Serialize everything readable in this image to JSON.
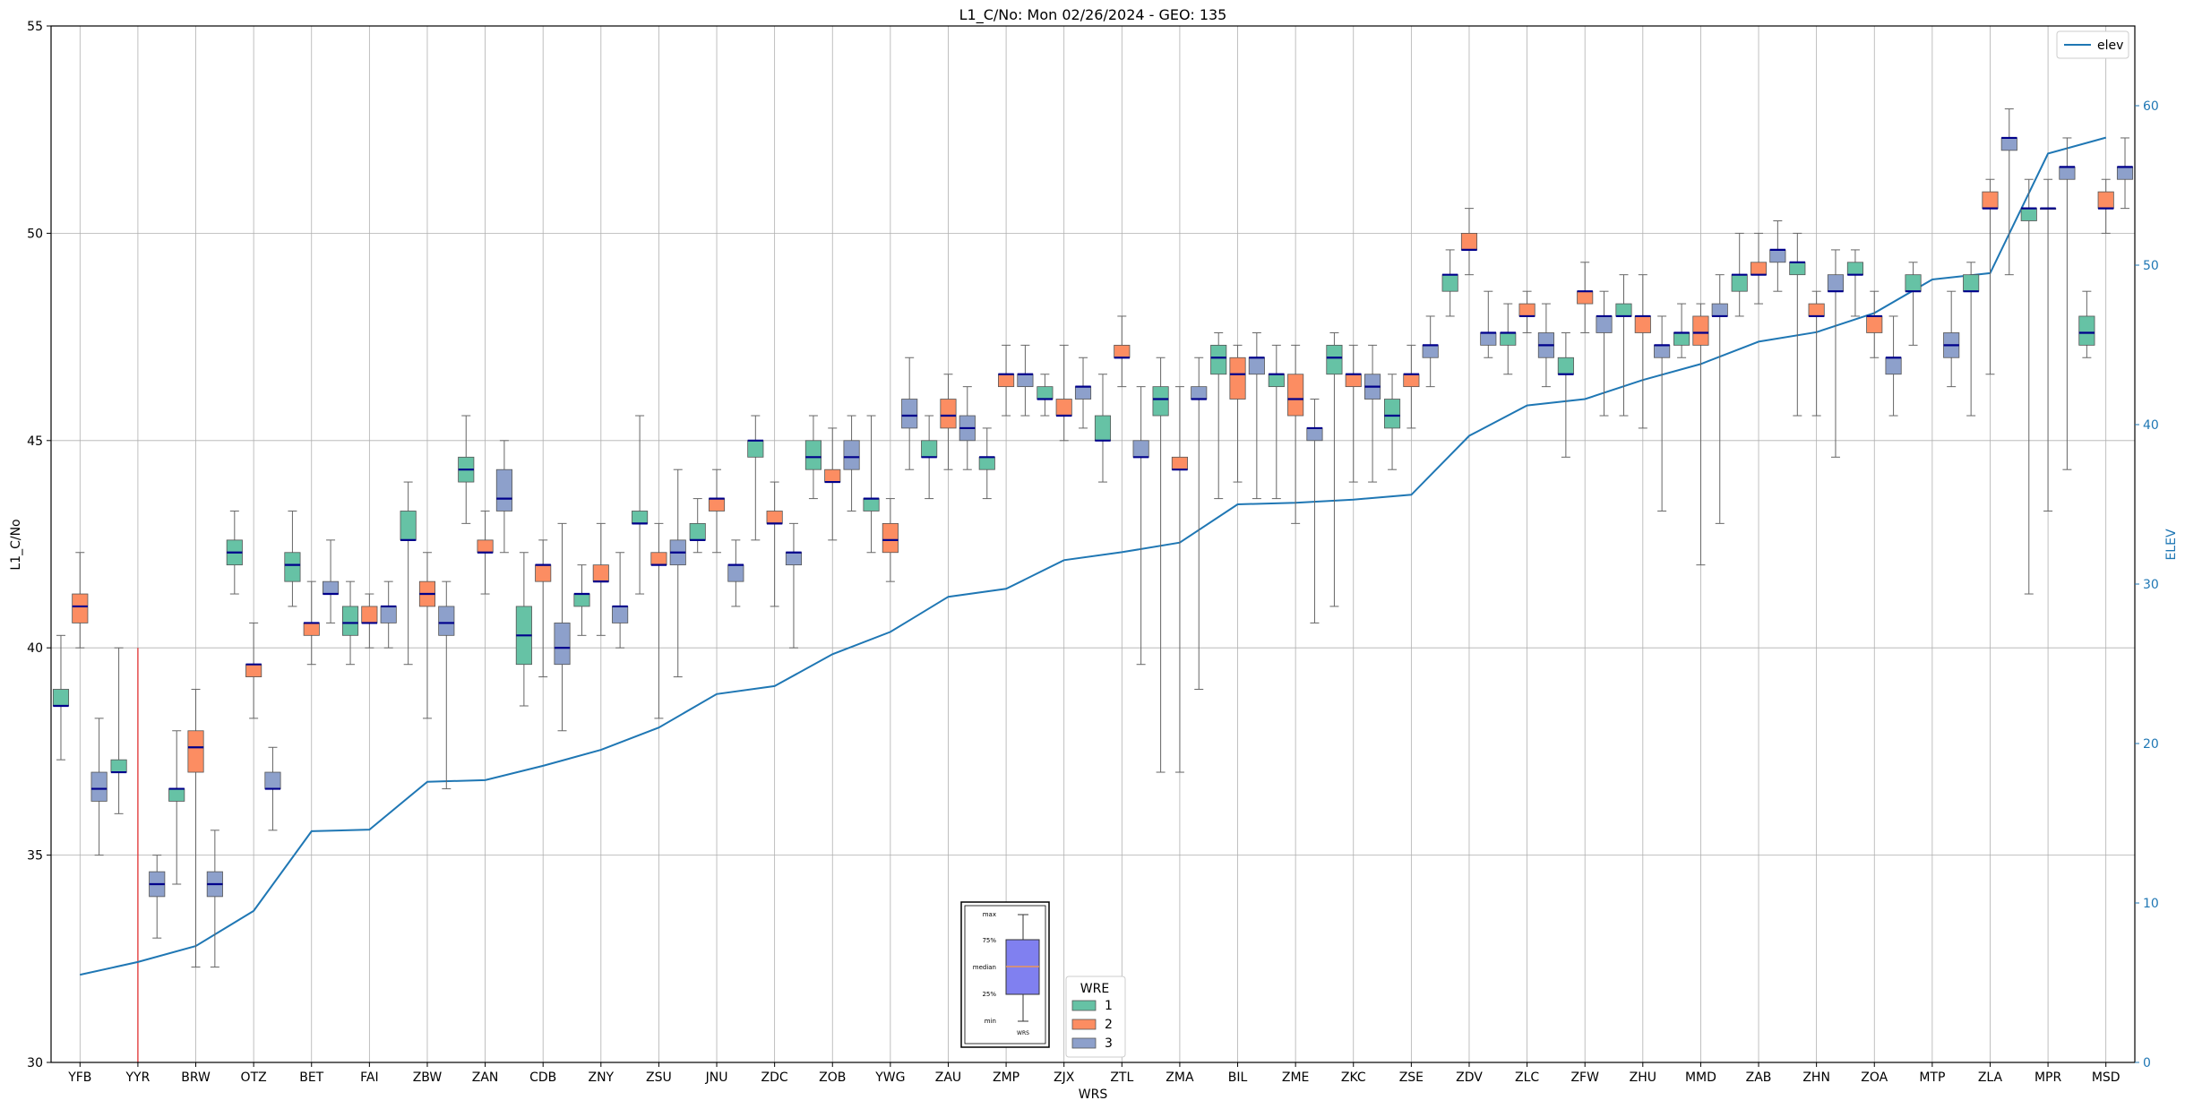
{
  "chart_data": {
    "type": "box",
    "title": "L1_C/No: Mon 02/26/2024 - GEO: 135",
    "xlabel": "WRS",
    "ylabel": "L1_C/No",
    "y2label": "ELEV",
    "ylim": [
      30,
      55
    ],
    "y2lim": [
      0,
      65
    ],
    "yticks": [
      30,
      35,
      40,
      45,
      50,
      55
    ],
    "y2ticks": [
      0,
      10,
      20,
      30,
      40,
      50,
      60
    ],
    "grid": true,
    "categories": [
      "YFB",
      "YYR",
      "BRW",
      "OTZ",
      "BET",
      "FAI",
      "ZBW",
      "ZAN",
      "CDB",
      "ZNY",
      "ZSU",
      "JNU",
      "ZDC",
      "ZOB",
      "YWG",
      "ZAU",
      "ZMP",
      "ZJX",
      "ZTL",
      "ZMA",
      "BIL",
      "ZME",
      "ZKC",
      "ZSE",
      "ZDV",
      "ZLC",
      "ZFW",
      "ZHU",
      "MMD",
      "ZAB",
      "ZHN",
      "ZOA",
      "MTP",
      "ZLA",
      "MPR",
      "MSD"
    ],
    "legend": {
      "title": "WRE",
      "placement": "bottom-center",
      "entries": [
        "1",
        "2",
        "3"
      ]
    },
    "legend2": {
      "placement": "top-right",
      "entries": [
        "elev"
      ]
    },
    "colors": {
      "1": "#66c2a5",
      "2": "#fc8d62",
      "3": "#8da0cb",
      "median": "#00008b",
      "elev": "#1f77b4",
      "whisker": "#666666",
      "vline": "#e03030",
      "grid": "#b0b0b0"
    },
    "key_labels": [
      "max",
      "75%",
      "median",
      "25%",
      "min"
    ],
    "key_xlabel": "WRS",
    "key_color": "#8080f0",
    "vline": {
      "category": "YYR",
      "y": [
        30,
        40
      ]
    },
    "boxes": [
      {
        "cat": "YFB",
        "wre": "1",
        "min": 37.3,
        "q1": 38.6,
        "med": 38.6,
        "q3": 39.0,
        "max": 40.3
      },
      {
        "cat": "YFB",
        "wre": "2",
        "min": 40.0,
        "q1": 40.6,
        "med": 41.0,
        "q3": 41.3,
        "max": 42.3
      },
      {
        "cat": "YFB",
        "wre": "3",
        "min": 35.0,
        "q1": 36.3,
        "med": 36.6,
        "q3": 37.0,
        "max": 38.3
      },
      {
        "cat": "YYR",
        "wre": "1",
        "min": 36.0,
        "q1": 37.0,
        "med": 37.0,
        "q3": 37.3,
        "max": 40.0
      },
      {
        "cat": "YYR",
        "wre": "3",
        "min": 33.0,
        "q1": 34.0,
        "med": 34.3,
        "q3": 34.6,
        "max": 35.0
      },
      {
        "cat": "BRW",
        "wre": "1",
        "min": 34.3,
        "q1": 36.3,
        "med": 36.6,
        "q3": 36.6,
        "max": 38.0
      },
      {
        "cat": "BRW",
        "wre": "2",
        "min": 32.3,
        "q1": 37.0,
        "med": 37.6,
        "q3": 38.0,
        "max": 39.0
      },
      {
        "cat": "BRW",
        "wre": "3",
        "min": 32.3,
        "q1": 34.0,
        "med": 34.3,
        "q3": 34.6,
        "max": 35.6
      },
      {
        "cat": "OTZ",
        "wre": "1",
        "min": 41.3,
        "q1": 42.0,
        "med": 42.3,
        "q3": 42.6,
        "max": 43.3
      },
      {
        "cat": "OTZ",
        "wre": "2",
        "min": 38.3,
        "q1": 39.3,
        "med": 39.6,
        "q3": 39.6,
        "max": 40.6
      },
      {
        "cat": "OTZ",
        "wre": "3",
        "min": 35.6,
        "q1": 36.6,
        "med": 36.6,
        "q3": 37.0,
        "max": 37.6
      },
      {
        "cat": "BET",
        "wre": "1",
        "min": 41.0,
        "q1": 41.6,
        "med": 42.0,
        "q3": 42.3,
        "max": 43.3
      },
      {
        "cat": "BET",
        "wre": "2",
        "min": 39.6,
        "q1": 40.3,
        "med": 40.6,
        "q3": 40.6,
        "max": 41.6
      },
      {
        "cat": "BET",
        "wre": "3",
        "min": 40.6,
        "q1": 41.3,
        "med": 41.3,
        "q3": 41.6,
        "max": 42.6
      },
      {
        "cat": "FAI",
        "wre": "1",
        "min": 39.6,
        "q1": 40.3,
        "med": 40.6,
        "q3": 41.0,
        "max": 41.6
      },
      {
        "cat": "FAI",
        "wre": "2",
        "min": 40.0,
        "q1": 40.6,
        "med": 40.6,
        "q3": 41.0,
        "max": 41.3
      },
      {
        "cat": "FAI",
        "wre": "3",
        "min": 40.0,
        "q1": 40.6,
        "med": 41.0,
        "q3": 41.0,
        "max": 41.6
      },
      {
        "cat": "ZBW",
        "wre": "1",
        "min": 39.6,
        "q1": 42.6,
        "med": 42.6,
        "q3": 43.3,
        "max": 44.0
      },
      {
        "cat": "ZBW",
        "wre": "2",
        "min": 38.3,
        "q1": 41.0,
        "med": 41.3,
        "q3": 41.6,
        "max": 42.3
      },
      {
        "cat": "ZBW",
        "wre": "3",
        "min": 36.6,
        "q1": 40.3,
        "med": 40.6,
        "q3": 41.0,
        "max": 41.6
      },
      {
        "cat": "ZAN",
        "wre": "1",
        "min": 43.0,
        "q1": 44.0,
        "med": 44.3,
        "q3": 44.6,
        "max": 45.6
      },
      {
        "cat": "ZAN",
        "wre": "2",
        "min": 41.3,
        "q1": 42.3,
        "med": 42.3,
        "q3": 42.6,
        "max": 43.3
      },
      {
        "cat": "ZAN",
        "wre": "3",
        "min": 42.3,
        "q1": 43.3,
        "med": 43.6,
        "q3": 44.3,
        "max": 45.0
      },
      {
        "cat": "CDB",
        "wre": "1",
        "min": 38.6,
        "q1": 39.6,
        "med": 40.3,
        "q3": 41.0,
        "max": 42.3
      },
      {
        "cat": "CDB",
        "wre": "2",
        "min": 39.3,
        "q1": 41.6,
        "med": 42.0,
        "q3": 42.0,
        "max": 42.6
      },
      {
        "cat": "CDB",
        "wre": "3",
        "min": 38.0,
        "q1": 39.6,
        "med": 40.0,
        "q3": 40.6,
        "max": 43.0
      },
      {
        "cat": "ZNY",
        "wre": "1",
        "min": 40.3,
        "q1": 41.0,
        "med": 41.3,
        "q3": 41.3,
        "max": 42.0
      },
      {
        "cat": "ZNY",
        "wre": "2",
        "min": 40.3,
        "q1": 41.6,
        "med": 41.6,
        "q3": 42.0,
        "max": 43.0
      },
      {
        "cat": "ZNY",
        "wre": "3",
        "min": 40.0,
        "q1": 40.6,
        "med": 41.0,
        "q3": 41.0,
        "max": 42.3
      },
      {
        "cat": "ZSU",
        "wre": "1",
        "min": 41.3,
        "q1": 43.0,
        "med": 43.0,
        "q3": 43.3,
        "max": 45.6
      },
      {
        "cat": "ZSU",
        "wre": "2",
        "min": 38.3,
        "q1": 42.0,
        "med": 42.0,
        "q3": 42.3,
        "max": 43.0
      },
      {
        "cat": "ZSU",
        "wre": "3",
        "min": 39.3,
        "q1": 42.0,
        "med": 42.3,
        "q3": 42.6,
        "max": 44.3
      },
      {
        "cat": "JNU",
        "wre": "1",
        "min": 42.3,
        "q1": 42.6,
        "med": 42.6,
        "q3": 43.0,
        "max": 43.6
      },
      {
        "cat": "JNU",
        "wre": "2",
        "min": 42.3,
        "q1": 43.3,
        "med": 43.6,
        "q3": 43.6,
        "max": 44.3
      },
      {
        "cat": "JNU",
        "wre": "3",
        "min": 41.0,
        "q1": 41.6,
        "med": 42.0,
        "q3": 42.0,
        "max": 42.6
      },
      {
        "cat": "ZDC",
        "wre": "1",
        "min": 42.6,
        "q1": 44.6,
        "med": 45.0,
        "q3": 45.0,
        "max": 45.6
      },
      {
        "cat": "ZDC",
        "wre": "2",
        "min": 41.0,
        "q1": 43.0,
        "med": 43.0,
        "q3": 43.3,
        "max": 44.0
      },
      {
        "cat": "ZDC",
        "wre": "3",
        "min": 40.0,
        "q1": 42.0,
        "med": 42.3,
        "q3": 42.3,
        "max": 43.0
      },
      {
        "cat": "ZOB",
        "wre": "1",
        "min": 43.6,
        "q1": 44.3,
        "med": 44.6,
        "q3": 45.0,
        "max": 45.6
      },
      {
        "cat": "ZOB",
        "wre": "2",
        "min": 42.6,
        "q1": 44.0,
        "med": 44.0,
        "q3": 44.3,
        "max": 45.3
      },
      {
        "cat": "ZOB",
        "wre": "3",
        "min": 43.3,
        "q1": 44.3,
        "med": 44.6,
        "q3": 45.0,
        "max": 45.6
      },
      {
        "cat": "YWG",
        "wre": "1",
        "min": 42.3,
        "q1": 43.3,
        "med": 43.6,
        "q3": 43.6,
        "max": 45.6
      },
      {
        "cat": "YWG",
        "wre": "2",
        "min": 41.6,
        "q1": 42.3,
        "med": 42.6,
        "q3": 43.0,
        "max": 43.6
      },
      {
        "cat": "YWG",
        "wre": "3",
        "min": 44.3,
        "q1": 45.3,
        "med": 45.6,
        "q3": 46.0,
        "max": 47.0
      },
      {
        "cat": "ZAU",
        "wre": "1",
        "min": 43.6,
        "q1": 44.6,
        "med": 44.6,
        "q3": 45.0,
        "max": 45.6
      },
      {
        "cat": "ZAU",
        "wre": "2",
        "min": 44.3,
        "q1": 45.3,
        "med": 45.6,
        "q3": 46.0,
        "max": 46.6
      },
      {
        "cat": "ZAU",
        "wre": "3",
        "min": 44.3,
        "q1": 45.0,
        "med": 45.3,
        "q3": 45.6,
        "max": 46.3
      },
      {
        "cat": "ZMP",
        "wre": "1",
        "min": 43.6,
        "q1": 44.3,
        "med": 44.6,
        "q3": 44.6,
        "max": 45.3
      },
      {
        "cat": "ZMP",
        "wre": "2",
        "min": 45.6,
        "q1": 46.3,
        "med": 46.6,
        "q3": 46.6,
        "max": 47.3
      },
      {
        "cat": "ZMP",
        "wre": "3",
        "min": 45.6,
        "q1": 46.3,
        "med": 46.6,
        "q3": 46.6,
        "max": 47.3
      },
      {
        "cat": "ZJX",
        "wre": "1",
        "min": 45.6,
        "q1": 46.0,
        "med": 46.0,
        "q3": 46.3,
        "max": 46.6
      },
      {
        "cat": "ZJX",
        "wre": "2",
        "min": 45.0,
        "q1": 45.6,
        "med": 45.6,
        "q3": 46.0,
        "max": 47.3
      },
      {
        "cat": "ZJX",
        "wre": "3",
        "min": 45.3,
        "q1": 46.0,
        "med": 46.3,
        "q3": 46.3,
        "max": 47.0
      },
      {
        "cat": "ZTL",
        "wre": "1",
        "min": 44.0,
        "q1": 45.0,
        "med": 45.0,
        "q3": 45.6,
        "max": 46.6
      },
      {
        "cat": "ZTL",
        "wre": "2",
        "min": 46.3,
        "q1": 47.0,
        "med": 47.0,
        "q3": 47.3,
        "max": 48.0
      },
      {
        "cat": "ZTL",
        "wre": "3",
        "min": 39.6,
        "q1": 44.6,
        "med": 44.6,
        "q3": 45.0,
        "max": 46.3
      },
      {
        "cat": "ZMA",
        "wre": "1",
        "min": 37.0,
        "q1": 45.6,
        "med": 46.0,
        "q3": 46.3,
        "max": 47.0
      },
      {
        "cat": "ZMA",
        "wre": "2",
        "min": 37.0,
        "q1": 44.3,
        "med": 44.3,
        "q3": 44.6,
        "max": 46.3
      },
      {
        "cat": "ZMA",
        "wre": "3",
        "min": 39.0,
        "q1": 46.0,
        "med": 46.0,
        "q3": 46.3,
        "max": 47.0
      },
      {
        "cat": "BIL",
        "wre": "1",
        "min": 43.6,
        "q1": 46.6,
        "med": 47.0,
        "q3": 47.3,
        "max": 47.6
      },
      {
        "cat": "BIL",
        "wre": "2",
        "min": 44.0,
        "q1": 46.0,
        "med": 46.6,
        "q3": 47.0,
        "max": 47.3
      },
      {
        "cat": "BIL",
        "wre": "3",
        "min": 43.6,
        "q1": 46.6,
        "med": 47.0,
        "q3": 47.0,
        "max": 47.6
      },
      {
        "cat": "ZME",
        "wre": "1",
        "min": 43.6,
        "q1": 46.3,
        "med": 46.6,
        "q3": 46.6,
        "max": 47.3
      },
      {
        "cat": "ZME",
        "wre": "2",
        "min": 43.0,
        "q1": 45.6,
        "med": 46.0,
        "q3": 46.6,
        "max": 47.3
      },
      {
        "cat": "ZME",
        "wre": "3",
        "min": 40.6,
        "q1": 45.0,
        "med": 45.3,
        "q3": 45.3,
        "max": 46.0
      },
      {
        "cat": "ZKC",
        "wre": "1",
        "min": 41.0,
        "q1": 46.6,
        "med": 47.0,
        "q3": 47.3,
        "max": 47.6
      },
      {
        "cat": "ZKC",
        "wre": "2",
        "min": 44.0,
        "q1": 46.3,
        "med": 46.6,
        "q3": 46.6,
        "max": 47.3
      },
      {
        "cat": "ZKC",
        "wre": "3",
        "min": 44.0,
        "q1": 46.0,
        "med": 46.3,
        "q3": 46.6,
        "max": 47.3
      },
      {
        "cat": "ZSE",
        "wre": "1",
        "min": 44.3,
        "q1": 45.3,
        "med": 45.6,
        "q3": 46.0,
        "max": 46.6
      },
      {
        "cat": "ZSE",
        "wre": "2",
        "min": 45.3,
        "q1": 46.3,
        "med": 46.6,
        "q3": 46.6,
        "max": 47.3
      },
      {
        "cat": "ZSE",
        "wre": "3",
        "min": 46.3,
        "q1": 47.0,
        "med": 47.3,
        "q3": 47.3,
        "max": 48.0
      },
      {
        "cat": "ZDV",
        "wre": "1",
        "min": 48.0,
        "q1": 48.6,
        "med": 49.0,
        "q3": 49.0,
        "max": 49.6
      },
      {
        "cat": "ZDV",
        "wre": "2",
        "min": 49.0,
        "q1": 49.6,
        "med": 49.6,
        "q3": 50.0,
        "max": 50.6
      },
      {
        "cat": "ZDV",
        "wre": "3",
        "min": 47.0,
        "q1": 47.3,
        "med": 47.6,
        "q3": 47.6,
        "max": 48.6
      },
      {
        "cat": "ZLC",
        "wre": "1",
        "min": 46.6,
        "q1": 47.3,
        "med": 47.6,
        "q3": 47.6,
        "max": 48.3
      },
      {
        "cat": "ZLC",
        "wre": "2",
        "min": 47.6,
        "q1": 48.0,
        "med": 48.0,
        "q3": 48.3,
        "max": 48.6
      },
      {
        "cat": "ZLC",
        "wre": "3",
        "min": 46.3,
        "q1": 47.0,
        "med": 47.3,
        "q3": 47.6,
        "max": 48.3
      },
      {
        "cat": "ZFW",
        "wre": "1",
        "min": 44.6,
        "q1": 46.6,
        "med": 46.6,
        "q3": 47.0,
        "max": 47.6
      },
      {
        "cat": "ZFW",
        "wre": "2",
        "min": 47.6,
        "q1": 48.3,
        "med": 48.6,
        "q3": 48.6,
        "max": 49.3
      },
      {
        "cat": "ZFW",
        "wre": "3",
        "min": 45.6,
        "q1": 47.6,
        "med": 48.0,
        "q3": 48.0,
        "max": 48.6
      },
      {
        "cat": "ZHU",
        "wre": "1",
        "min": 45.6,
        "q1": 48.0,
        "med": 48.0,
        "q3": 48.3,
        "max": 49.0
      },
      {
        "cat": "ZHU",
        "wre": "2",
        "min": 45.3,
        "q1": 47.6,
        "med": 48.0,
        "q3": 48.0,
        "max": 49.0
      },
      {
        "cat": "ZHU",
        "wre": "3",
        "min": 43.3,
        "q1": 47.0,
        "med": 47.3,
        "q3": 47.3,
        "max": 48.0
      },
      {
        "cat": "MMD",
        "wre": "1",
        "min": 47.0,
        "q1": 47.3,
        "med": 47.6,
        "q3": 47.6,
        "max": 48.3
      },
      {
        "cat": "MMD",
        "wre": "2",
        "min": 42.0,
        "q1": 47.3,
        "med": 47.6,
        "q3": 48.0,
        "max": 48.3
      },
      {
        "cat": "MMD",
        "wre": "3",
        "min": 43.0,
        "q1": 48.0,
        "med": 48.0,
        "q3": 48.3,
        "max": 49.0
      },
      {
        "cat": "ZAB",
        "wre": "1",
        "min": 48.0,
        "q1": 48.6,
        "med": 49.0,
        "q3": 49.0,
        "max": 50.0
      },
      {
        "cat": "ZAB",
        "wre": "2",
        "min": 48.3,
        "q1": 49.0,
        "med": 49.0,
        "q3": 49.3,
        "max": 50.0
      },
      {
        "cat": "ZAB",
        "wre": "3",
        "min": 48.6,
        "q1": 49.3,
        "med": 49.6,
        "q3": 49.6,
        "max": 50.3
      },
      {
        "cat": "ZHN",
        "wre": "1",
        "min": 45.6,
        "q1": 49.0,
        "med": 49.3,
        "q3": 49.3,
        "max": 50.0
      },
      {
        "cat": "ZHN",
        "wre": "2",
        "min": 45.6,
        "q1": 48.0,
        "med": 48.0,
        "q3": 48.3,
        "max": 48.6
      },
      {
        "cat": "ZHN",
        "wre": "3",
        "min": 44.6,
        "q1": 48.6,
        "med": 48.6,
        "q3": 49.0,
        "max": 49.6
      },
      {
        "cat": "ZOA",
        "wre": "1",
        "min": 48.0,
        "q1": 49.0,
        "med": 49.0,
        "q3": 49.3,
        "max": 49.6
      },
      {
        "cat": "ZOA",
        "wre": "2",
        "min": 47.0,
        "q1": 47.6,
        "med": 48.0,
        "q3": 48.0,
        "max": 48.6
      },
      {
        "cat": "ZOA",
        "wre": "3",
        "min": 45.6,
        "q1": 46.6,
        "med": 47.0,
        "q3": 47.0,
        "max": 48.0
      },
      {
        "cat": "MTP",
        "wre": "1",
        "min": 47.3,
        "q1": 48.6,
        "med": 48.6,
        "q3": 49.0,
        "max": 49.3
      },
      {
        "cat": "MTP",
        "wre": "3",
        "min": 46.3,
        "q1": 47.0,
        "med": 47.3,
        "q3": 47.6,
        "max": 48.6
      },
      {
        "cat": "ZLA",
        "wre": "1",
        "min": 45.6,
        "q1": 48.6,
        "med": 48.6,
        "q3": 49.0,
        "max": 49.3
      },
      {
        "cat": "ZLA",
        "wre": "2",
        "min": 46.6,
        "q1": 50.6,
        "med": 50.6,
        "q3": 51.0,
        "max": 51.3
      },
      {
        "cat": "ZLA",
        "wre": "3",
        "min": 49.0,
        "q1": 52.0,
        "med": 52.3,
        "q3": 52.3,
        "max": 53.0
      },
      {
        "cat": "MPR",
        "wre": "1",
        "min": 41.3,
        "q1": 50.3,
        "med": 50.6,
        "q3": 50.6,
        "max": 51.3
      },
      {
        "cat": "MPR",
        "wre": "2",
        "min": 43.3,
        "q1": 50.6,
        "med": 50.6,
        "q3": 50.6,
        "max": 51.3
      },
      {
        "cat": "MPR",
        "wre": "3",
        "min": 44.3,
        "q1": 51.3,
        "med": 51.6,
        "q3": 51.6,
        "max": 52.3
      },
      {
        "cat": "MSD",
        "wre": "1",
        "min": 47.0,
        "q1": 47.3,
        "med": 47.6,
        "q3": 48.0,
        "max": 48.6
      },
      {
        "cat": "MSD",
        "wre": "2",
        "min": 50.0,
        "q1": 50.6,
        "med": 50.6,
        "q3": 51.0,
        "max": 51.3
      },
      {
        "cat": "MSD",
        "wre": "3",
        "min": 50.6,
        "q1": 51.3,
        "med": 51.6,
        "q3": 51.6,
        "max": 52.3
      }
    ],
    "elev": [
      5.5,
      6.3,
      7.3,
      9.5,
      14.5,
      14.6,
      17.6,
      17.7,
      18.6,
      19.6,
      21.0,
      23.1,
      23.6,
      25.6,
      27.0,
      29.2,
      29.7,
      31.5,
      32.0,
      32.6,
      35.0,
      35.1,
      35.3,
      35.6,
      39.3,
      41.2,
      41.6,
      42.8,
      43.8,
      45.2,
      45.8,
      47.0,
      49.1,
      49.5,
      57.0,
      58.0
    ]
  }
}
